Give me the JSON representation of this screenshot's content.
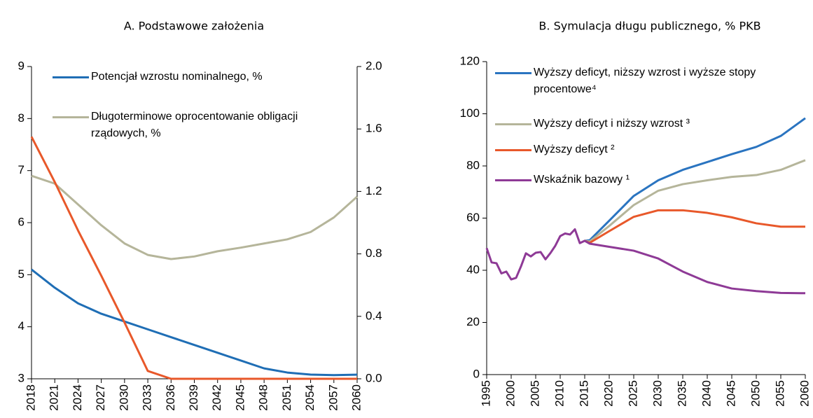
{
  "chart_data": [
    {
      "type": "line",
      "title": "A. Podstawowe założenia",
      "x": [
        2018,
        2021,
        2024,
        2027,
        2030,
        2033,
        2036,
        2039,
        2042,
        2045,
        2048,
        2051,
        2054,
        2057,
        2060
      ],
      "series": [
        {
          "name": "Potencjał wzrostu nominalnego, %",
          "color": "#1f6eb5",
          "values": [
            5.1,
            4.75,
            4.45,
            4.25,
            4.1,
            3.95,
            3.8,
            3.65,
            3.5,
            3.35,
            3.2,
            3.12,
            3.08,
            3.07,
            3.08
          ]
        },
        {
          "name": "Długoterminowe oprocentowanie obligacji rządowych, %",
          "color": "#b5b59a",
          "values": [
            6.9,
            6.75,
            6.35,
            5.95,
            5.6,
            5.38,
            5.3,
            5.35,
            5.45,
            5.52,
            5.6,
            5.68,
            5.82,
            6.1,
            6.5
          ]
        },
        {
          "color": "#e8582a",
          "axis": "y2",
          "values": [
            1.55,
            1.26,
            0.95,
            0.66,
            0.36,
            0.05,
            0,
            0,
            0,
            0,
            0,
            0,
            0,
            0,
            0
          ]
        }
      ],
      "xlim": [
        2018,
        2060
      ],
      "xticks": [
        2018,
        2021,
        2024,
        2027,
        2030,
        2033,
        2036,
        2039,
        2042,
        2045,
        2048,
        2051,
        2054,
        2057,
        2060
      ],
      "ylim": [
        3,
        9
      ],
      "yticks": [
        3,
        4,
        5,
        6,
        7,
        8,
        9
      ],
      "y2lim": [
        0,
        2
      ],
      "y2ticks": [
        {
          "value": 0,
          "label": "0.0"
        },
        {
          "value": 0.4,
          "label": "0.4"
        },
        {
          "value": 0.8,
          "label": "0.8"
        },
        {
          "value": 1.2,
          "label": "1.2"
        },
        {
          "value": 1.6,
          "label": "1.6"
        },
        {
          "value": 2,
          "label": "2.0"
        }
      ],
      "grid": false
    },
    {
      "type": "line",
      "title": "B. Symulacja długu publicznego, % PKB",
      "x": [
        1995,
        1996,
        1997,
        1998,
        1999,
        2000,
        2001,
        2002,
        2003,
        2004,
        2005,
        2006,
        2007,
        2008,
        2009,
        2010,
        2011,
        2012,
        2013,
        2014,
        2015,
        2016,
        2020,
        2025,
        2030,
        2035,
        2040,
        2045,
        2050,
        2055,
        2060
      ],
      "series": [
        {
          "name": "Wyższy deficyt, niższy wzrost i wyższe stopy procentowe⁴",
          "color": "#2a74c0",
          "values": [
            null,
            null,
            null,
            null,
            null,
            null,
            null,
            null,
            null,
            null,
            null,
            null,
            null,
            null,
            null,
            null,
            null,
            null,
            null,
            null,
            51.3,
            51.5,
            59,
            68.5,
            74.5,
            78.5,
            81.5,
            84.5,
            87.3,
            91.5,
            98.3
          ]
        },
        {
          "name": "Wyższy deficyt i niższy wzrost ³",
          "color": "#b5b59a",
          "values": [
            null,
            null,
            null,
            null,
            null,
            null,
            null,
            null,
            null,
            null,
            null,
            null,
            null,
            null,
            null,
            null,
            null,
            null,
            null,
            null,
            51.3,
            51,
            57,
            65,
            70.5,
            73,
            74.5,
            75.8,
            76.5,
            78.5,
            82.2
          ]
        },
        {
          "name": "Wyższy deficyt ²",
          "color": "#e8582a",
          "values": [
            null,
            null,
            null,
            null,
            null,
            null,
            null,
            null,
            null,
            null,
            null,
            null,
            null,
            null,
            null,
            null,
            null,
            null,
            null,
            null,
            51.3,
            50.5,
            55,
            60.5,
            63,
            63,
            62,
            60.3,
            58,
            56.7,
            56.7
          ]
        },
        {
          "name": "Wskaźnik bazowy ¹",
          "color": "#8e3a96",
          "values": [
            48.5,
            43,
            42.7,
            38.8,
            39.5,
            36.5,
            37.1,
            41.5,
            46.5,
            45.3,
            46.7,
            47,
            44.2,
            46.6,
            49.4,
            53.1,
            54.1,
            53.7,
            55.7,
            50.4,
            51.3,
            50.2,
            49,
            47.5,
            44.5,
            39.5,
            35.5,
            33,
            32,
            31.3,
            31.2
          ]
        }
      ],
      "xlim": [
        1995,
        2060
      ],
      "xticks": [
        1995,
        2000,
        2005,
        2010,
        2015,
        2020,
        2025,
        2030,
        2035,
        2040,
        2045,
        2050,
        2055,
        2060
      ],
      "ylim": [
        0,
        120
      ],
      "yticks": [
        0,
        20,
        40,
        60,
        80,
        100,
        120
      ],
      "grid": false
    }
  ]
}
